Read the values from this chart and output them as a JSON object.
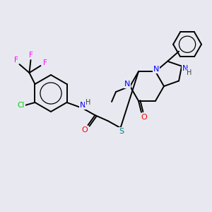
{
  "background_color": "#e8e8f0",
  "atom_colors": {
    "N": "#0000ff",
    "O": "#ff0000",
    "S": "#008080",
    "Cl": "#00cc00",
    "F": "#ff00ff",
    "H": "#444444",
    "C": "#000000"
  },
  "bond_color": "#000000",
  "figsize": [
    3.0,
    3.0
  ],
  "dpi": 100
}
